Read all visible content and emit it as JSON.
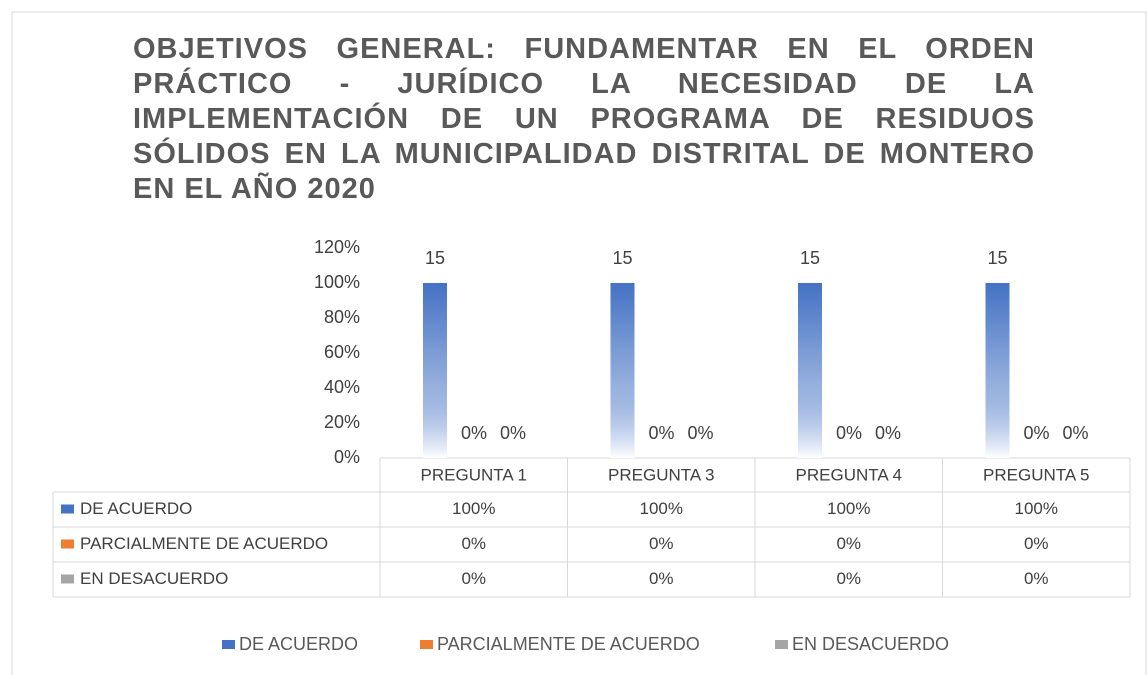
{
  "chart_data": {
    "type": "bar",
    "title": "OBJETIVOS GENERAL: FUNDAMENTAR EN EL ORDEN PRÁCTICO - JURÍDICO LA NECESIDAD DE LA IMPLEMENTACIÓN DE UN PROGRAMA DE RESIDUOS SÓLIDOS EN LA MUNICIPALIDAD DISTRITAL DE MONTERO EN EL AÑO 2020",
    "categories": [
      "PREGUNTA 1",
      "PREGUNTA 3",
      "PREGUNTA 4",
      "PREGUNTA 5"
    ],
    "series": [
      {
        "name": "DE ACUERDO",
        "color": "#4472c4",
        "values": [
          100,
          100,
          100,
          100
        ],
        "value_labels": [
          "100%",
          "100%",
          "100%",
          "100%"
        ],
        "bar_labels": [
          15,
          15,
          15,
          15
        ]
      },
      {
        "name": "PARCIALMENTE DE ACUERDO",
        "color": "#ed7d31",
        "values": [
          0,
          0,
          0,
          0
        ],
        "value_labels": [
          "0%",
          "0%",
          "0%",
          "0%"
        ]
      },
      {
        "name": "EN DESACUERDO",
        "color": "#a5a5a5",
        "values": [
          0,
          0,
          0,
          0
        ],
        "value_labels": [
          "0%",
          "0%",
          "0%",
          "0%"
        ]
      }
    ],
    "ylim": [
      0,
      120
    ],
    "yticks": [
      {
        "value": 0,
        "label": "0%"
      },
      {
        "value": 20,
        "label": "20%"
      },
      {
        "value": 40,
        "label": "40%"
      },
      {
        "value": 60,
        "label": "60%"
      },
      {
        "value": 80,
        "label": "80%"
      },
      {
        "value": 100,
        "label": "100%"
      },
      {
        "value": 120,
        "label": "120%"
      }
    ],
    "grid": false,
    "legend": "bottom",
    "data_table": true
  }
}
